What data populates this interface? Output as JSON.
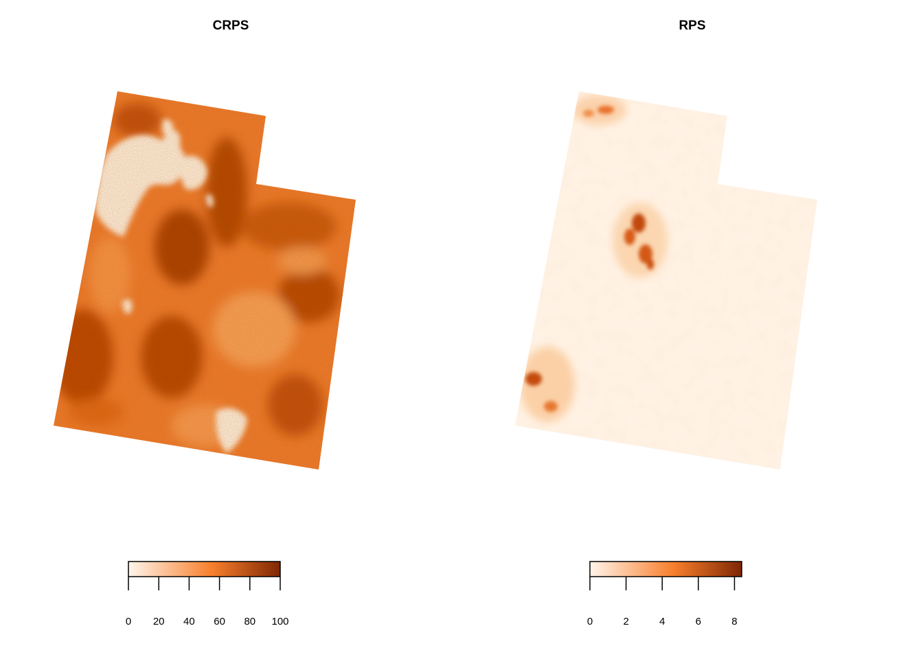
{
  "panels": [
    {
      "title": "CRPS",
      "legend": {
        "min": 0,
        "max": 100,
        "ticks": [
          0,
          20,
          40,
          60,
          80,
          100
        ]
      },
      "colors": {
        "low": "#fff5eb",
        "mid": "#f87f2c",
        "high": "#7f2704",
        "base": "#ef7a30"
      }
    },
    {
      "title": "RPS",
      "legend": {
        "min": 0,
        "max": 8.4,
        "ticks": [
          0,
          2,
          4,
          6,
          8
        ]
      },
      "colors": {
        "low": "#fff5eb",
        "mid": "#f87f2c",
        "high": "#7f2704",
        "base": "#fff3e6"
      }
    }
  ]
}
